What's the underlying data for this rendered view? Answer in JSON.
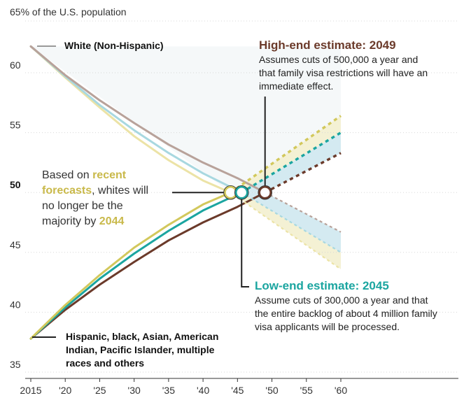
{
  "chart_data": {
    "type": "line",
    "ylabel_top": "65% of the U.S. population",
    "xlim": [
      2015,
      2060
    ],
    "ylim": [
      35,
      65
    ],
    "x_ticks": [
      {
        "value": 2015,
        "label": "2015"
      },
      {
        "value": 2020,
        "label": "'20"
      },
      {
        "value": 2025,
        "label": "'25"
      },
      {
        "value": 2030,
        "label": "'30"
      },
      {
        "value": 2035,
        "label": "'35"
      },
      {
        "value": 2040,
        "label": "'40"
      },
      {
        "value": 2045,
        "label": "'45"
      },
      {
        "value": 2050,
        "label": "'50"
      },
      {
        "value": 2055,
        "label": "'55"
      },
      {
        "value": 2060,
        "label": "'60"
      }
    ],
    "y_ticks": [
      {
        "value": 35,
        "label": "35",
        "bold": false
      },
      {
        "value": 40,
        "label": "40",
        "bold": false
      },
      {
        "value": 45,
        "label": "45",
        "bold": false
      },
      {
        "value": 50,
        "label": "50",
        "bold": true
      },
      {
        "value": 55,
        "label": "55",
        "bold": false
      },
      {
        "value": 60,
        "label": "60",
        "bold": false
      }
    ],
    "colors": {
      "recent": "#d2c85c",
      "low": "#1ba5a0",
      "high": "#6b3a2a",
      "white_high": "#b8a29a",
      "white_low": "#a8d8e0",
      "white_recent": "#ece3a6",
      "band_low": "#cfe8ef",
      "band_recent": "#f3efcf"
    },
    "series": [
      {
        "key": "minority_recent",
        "color_key": "recent",
        "x": [
          2015,
          2020,
          2025,
          2030,
          2035,
          2040,
          2044
        ],
        "y": [
          37.8,
          40.6,
          43.1,
          45.4,
          47.3,
          49.0,
          50.0
        ]
      },
      {
        "key": "minority_low",
        "color_key": "low",
        "x": [
          2015,
          2020,
          2025,
          2030,
          2035,
          2040,
          2045.6
        ],
        "y": [
          37.8,
          40.4,
          42.8,
          44.9,
          46.8,
          48.5,
          50.0
        ]
      },
      {
        "key": "minority_high",
        "color_key": "high",
        "x": [
          2015,
          2020,
          2025,
          2030,
          2035,
          2040,
          2045,
          2049
        ],
        "y": [
          37.8,
          40.2,
          42.3,
          44.2,
          46.0,
          47.5,
          48.8,
          50.0
        ]
      },
      {
        "key": "white_recent",
        "color_key": "white_recent",
        "x": [
          2015,
          2020,
          2025,
          2030,
          2035,
          2040,
          2044
        ],
        "y": [
          62.2,
          59.6,
          57.1,
          54.7,
          52.7,
          51.0,
          50.0
        ]
      },
      {
        "key": "white_low",
        "color_key": "white_low",
        "x": [
          2015,
          2020,
          2025,
          2030,
          2035,
          2040,
          2045.6
        ],
        "y": [
          62.2,
          59.7,
          57.3,
          55.2,
          53.3,
          51.6,
          50.0
        ]
      },
      {
        "key": "white_high",
        "color_key": "white_high",
        "x": [
          2015,
          2020,
          2025,
          2030,
          2035,
          2040,
          2045,
          2049
        ],
        "y": [
          62.2,
          59.8,
          57.7,
          55.8,
          54.0,
          52.5,
          51.2,
          50.0
        ]
      }
    ],
    "projections": [
      {
        "key": "minority_recent_proj",
        "color_key": "recent",
        "x": [
          2044,
          2060
        ],
        "y": [
          50.0,
          56.4
        ]
      },
      {
        "key": "minority_low_proj",
        "color_key": "low",
        "x": [
          2045.6,
          2060
        ],
        "y": [
          50.0,
          55.0
        ]
      },
      {
        "key": "minority_high_proj",
        "color_key": "high",
        "x": [
          2049,
          2060
        ],
        "y": [
          50.0,
          53.3
        ]
      },
      {
        "key": "white_recent_proj",
        "color_key": "white_recent",
        "x": [
          2044,
          2060
        ],
        "y": [
          50.0,
          43.6
        ]
      },
      {
        "key": "white_low_proj",
        "color_key": "white_low",
        "x": [
          2045.6,
          2060
        ],
        "y": [
          50.0,
          45.0
        ]
      },
      {
        "key": "white_high_proj",
        "color_key": "white_high",
        "x": [
          2049,
          2060
        ],
        "y": [
          50.0,
          46.7
        ]
      }
    ],
    "markers": [
      {
        "key": "recent",
        "x": 2044,
        "y": 50,
        "color_key": "recent"
      },
      {
        "key": "low",
        "x": 2045.6,
        "y": 50,
        "color_key": "low"
      },
      {
        "key": "high",
        "x": 2049,
        "y": 50,
        "color_key": "high"
      }
    ]
  },
  "labels": {
    "white_label": "White (Non-Hispanic)",
    "minority_label_1": "Hispanic, black, Asian, American",
    "minority_label_2": "Indian, Pacific Islander, multiple",
    "minority_label_3": "races and others",
    "forecast_1a": "Based on ",
    "forecast_1b": "recent",
    "forecast_2a": "forecasts",
    "forecast_2b": ", whites will",
    "forecast_3": "no longer be the",
    "forecast_4a": "majority by ",
    "forecast_4b": "2044",
    "high_heading": "High-end estimate: 2049",
    "high_text_1": "Assumes cuts of 500,000 a year and",
    "high_text_2": "that family visa restrictions will have an",
    "high_text_3": "immediate effect.",
    "low_heading": "Low-end estimate: 2045",
    "low_text_1": "Assume cuts of 300,000 a year and that",
    "low_text_2": "the entire backlog of about 4 million family",
    "low_text_3": "visa applicants will be processed."
  }
}
